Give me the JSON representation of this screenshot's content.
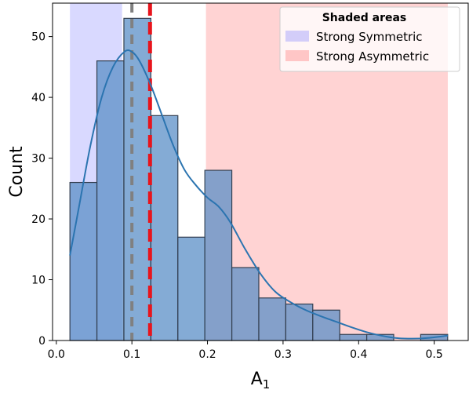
{
  "chart_data": {
    "type": "bar",
    "xlabel": "A",
    "xlabel_sub": "1",
    "ylabel": "Count",
    "xlim": [
      -0.005,
      0.545
    ],
    "ylim": [
      0,
      55.5
    ],
    "xticks": [
      "0.0",
      "0.1",
      "0.2",
      "0.3",
      "0.4",
      "0.5"
    ],
    "yticks": [
      "0",
      "10",
      "20",
      "30",
      "40",
      "50"
    ],
    "xtick_values": [
      0.0,
      0.1,
      0.2,
      0.3,
      0.4,
      0.5
    ],
    "ytick_values": [
      0,
      10,
      20,
      30,
      40,
      50
    ],
    "grid": false,
    "bins": {
      "edges": [
        0.018,
        0.0537,
        0.0894,
        0.1251,
        0.1608,
        0.1965,
        0.2322,
        0.2679,
        0.3036,
        0.3393,
        0.375,
        0.4107,
        0.4464,
        0.4821,
        0.5178
      ],
      "counts": [
        26,
        46,
        53,
        37,
        17,
        28,
        12,
        7,
        6,
        5,
        1,
        1,
        0,
        1
      ]
    },
    "kde": {
      "x": [
        0.018,
        0.03,
        0.045,
        0.06,
        0.075,
        0.09,
        0.1,
        0.11,
        0.125,
        0.14,
        0.155,
        0.17,
        0.185,
        0.2,
        0.215,
        0.23,
        0.25,
        0.27,
        0.29,
        0.31,
        0.33,
        0.35,
        0.37,
        0.39,
        0.41,
        0.43,
        0.45,
        0.47,
        0.49,
        0.518
      ],
      "y": [
        14,
        22,
        32,
        40,
        45,
        47.5,
        47.5,
        46,
        42,
        37,
        32,
        28,
        25.5,
        23.5,
        22,
        19.5,
        15,
        11,
        8,
        6.3,
        5,
        4,
        3.1,
        2.2,
        1.4,
        0.8,
        0.4,
        0.3,
        0.4,
        0.8
      ]
    },
    "vlines": [
      {
        "x": 0.1,
        "color": "#808080",
        "style": "dashed"
      },
      {
        "x": 0.124,
        "color": "#e8141c",
        "style": "dashed"
      }
    ],
    "shaded_regions": [
      {
        "name": "Strong Symmetric",
        "from": 0.018,
        "to": 0.087,
        "color": "#8080ff",
        "opacity": 0.3
      },
      {
        "name": "Strong Asymmetric",
        "from": 0.198,
        "to": 0.518,
        "color": "#ff8080",
        "opacity": 0.35
      }
    ],
    "legend": {
      "title": "Shaded areas",
      "placement": "top-right",
      "entries": [
        "Strong Symmetric",
        "Strong Asymmetric"
      ]
    },
    "colors": {
      "bar_fill": "#5b8fc7",
      "bar_edge": "#333f50",
      "kde_line": "#2b74b0"
    }
  }
}
